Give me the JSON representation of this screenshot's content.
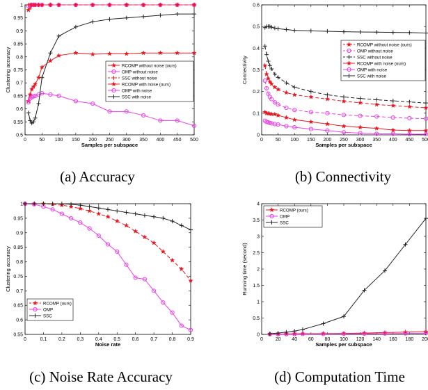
{
  "chart_data": [
    {
      "id": "a",
      "type": "line",
      "xlabel": "Samples per subspace",
      "ylabel": "Clustering accuracy",
      "xlim": [
        0,
        500
      ],
      "ylim": [
        0.5,
        1.0
      ],
      "xticks": [
        0,
        50,
        100,
        150,
        200,
        250,
        300,
        350,
        400,
        450,
        500
      ],
      "yticks": [
        0.5,
        0.55,
        0.6,
        0.65,
        0.7,
        0.75,
        0.8,
        0.85,
        0.9,
        0.95,
        1
      ],
      "grid": false,
      "legend_position": "middle-right",
      "series": [
        {
          "name": "RCOMP without noise (ours)",
          "color": "#e8171f",
          "dash": "",
          "marker": "star",
          "x": [
            10,
            15,
            20,
            25,
            30,
            40,
            50,
            75,
            100,
            150,
            200,
            250,
            300,
            350,
            400,
            450,
            500
          ],
          "y": [
            0.98,
            0.99,
            1,
            1,
            1,
            1,
            1,
            1,
            1,
            1,
            1,
            1,
            1,
            1,
            1,
            1,
            1
          ]
        },
        {
          "name": "OMP without noise",
          "color": "#ee3ee8",
          "dash": "",
          "marker": "circle",
          "x": [
            10,
            15,
            20,
            25,
            30,
            40,
            50,
            75,
            100,
            150,
            200,
            250,
            300,
            350,
            400,
            450,
            500
          ],
          "y": [
            0.995,
            0.998,
            1,
            1,
            1,
            1,
            1,
            1,
            1,
            1,
            1,
            1,
            1,
            1,
            1,
            1,
            1
          ]
        },
        {
          "name": "SSC without noise",
          "color": "#e8171f",
          "dash": "5,3",
          "marker": "plus",
          "x": [
            10,
            15,
            20,
            25,
            30,
            40,
            50,
            75,
            100,
            150,
            200,
            250,
            300,
            350,
            400,
            450,
            500
          ],
          "y": [
            1,
            1,
            1,
            1,
            1,
            1,
            1,
            1,
            1,
            1,
            1,
            1,
            1,
            1,
            1,
            1,
            1
          ]
        },
        {
          "name": "RCOMP with noise (ours)",
          "color": "#e8171f",
          "dash": "",
          "marker": "star",
          "x": [
            10,
            15,
            20,
            25,
            30,
            40,
            50,
            75,
            100,
            150,
            200,
            250,
            300,
            350,
            400,
            450,
            500
          ],
          "y": [
            0.63,
            0.655,
            0.675,
            0.685,
            0.695,
            0.72,
            0.76,
            0.785,
            0.805,
            0.815,
            0.81,
            0.812,
            0.812,
            0.815,
            0.815,
            0.815,
            0.815
          ]
        },
        {
          "name": "OMP with noise",
          "color": "#ee3ee8",
          "dash": "",
          "marker": "circle",
          "x": [
            10,
            15,
            20,
            25,
            30,
            40,
            50,
            75,
            100,
            150,
            200,
            250,
            300,
            350,
            400,
            450,
            500
          ],
          "y": [
            0.625,
            0.64,
            0.645,
            0.648,
            0.65,
            0.655,
            0.66,
            0.655,
            0.65,
            0.63,
            0.62,
            0.59,
            0.59,
            0.575,
            0.555,
            0.555,
            0.535
          ]
        },
        {
          "name": "SSC with noise",
          "color": "#222222",
          "dash": "",
          "marker": "plus",
          "x": [
            10,
            15,
            20,
            25,
            30,
            40,
            50,
            75,
            100,
            150,
            200,
            250,
            300,
            350,
            400,
            450,
            500
          ],
          "y": [
            0.585,
            0.555,
            0.545,
            0.55,
            0.565,
            0.62,
            0.72,
            0.815,
            0.88,
            0.915,
            0.935,
            0.945,
            0.95,
            0.955,
            0.96,
            0.965,
            0.965
          ]
        }
      ]
    },
    {
      "id": "b",
      "type": "line",
      "xlabel": "Samples per subspace",
      "ylabel": "Connectivity",
      "xlim": [
        0,
        500
      ],
      "ylim": [
        0,
        0.6
      ],
      "xticks": [
        0,
        50,
        100,
        150,
        200,
        250,
        300,
        350,
        400,
        450,
        500
      ],
      "yticks": [
        0,
        0.1,
        0.2,
        0.3,
        0.4,
        0.5,
        0.6
      ],
      "grid": false,
      "legend_position": "middle-right",
      "series": [
        {
          "name": "RCOMP without noise (ours)",
          "color": "#e8171f",
          "dash": "5,3",
          "marker": "star",
          "x": [
            10,
            15,
            20,
            25,
            30,
            40,
            50,
            75,
            100,
            150,
            200,
            250,
            300,
            350,
            400,
            450,
            500
          ],
          "y": [
            0.32,
            0.28,
            0.26,
            0.245,
            0.235,
            0.22,
            0.21,
            0.195,
            0.185,
            0.175,
            0.165,
            0.155,
            0.148,
            0.14,
            0.135,
            0.13,
            0.125
          ]
        },
        {
          "name": "OMP without noise",
          "color": "#ee3ee8",
          "dash": "5,3",
          "marker": "circle",
          "x": [
            10,
            15,
            20,
            25,
            30,
            40,
            50,
            75,
            100,
            150,
            200,
            250,
            300,
            350,
            400,
            450,
            500
          ],
          "y": [
            0.25,
            0.215,
            0.19,
            0.175,
            0.165,
            0.15,
            0.14,
            0.125,
            0.115,
            0.105,
            0.1,
            0.092,
            0.088,
            0.085,
            0.08,
            0.077,
            0.075
          ]
        },
        {
          "name": "SSC without noise",
          "color": "#222222",
          "dash": "5,3",
          "marker": "plus",
          "x": [
            10,
            15,
            20,
            25,
            30,
            40,
            50,
            75,
            100,
            150,
            200,
            250,
            300,
            350,
            400,
            450,
            500
          ],
          "y": [
            0.41,
            0.37,
            0.34,
            0.32,
            0.305,
            0.28,
            0.265,
            0.24,
            0.22,
            0.2,
            0.185,
            0.175,
            0.168,
            0.162,
            0.157,
            0.152,
            0.147
          ]
        },
        {
          "name": "RCOMP with noise (ours)",
          "color": "#e8171f",
          "dash": "",
          "marker": "star",
          "x": [
            10,
            15,
            20,
            25,
            30,
            40,
            50,
            75,
            100,
            150,
            200,
            250,
            300,
            350,
            400,
            450,
            500
          ],
          "y": [
            0.105,
            0.1,
            0.098,
            0.097,
            0.096,
            0.095,
            0.09,
            0.08,
            0.07,
            0.06,
            0.05,
            0.04,
            0.035,
            0.03,
            0.022,
            0.02,
            0.02
          ]
        },
        {
          "name": "OMP with noise",
          "color": "#ee3ee8",
          "dash": "",
          "marker": "circle",
          "x": [
            10,
            15,
            20,
            25,
            30,
            40,
            50,
            75,
            100,
            150,
            200,
            250,
            300,
            350,
            400,
            450,
            500
          ],
          "y": [
            0.065,
            0.06,
            0.058,
            0.055,
            0.053,
            0.05,
            0.048,
            0.04,
            0.035,
            0.027,
            0.02,
            0.012,
            0.008,
            0.005,
            0.005,
            0.003,
            0.003
          ]
        },
        {
          "name": "SSC with noise",
          "color": "#222222",
          "dash": "",
          "marker": "plus",
          "x": [
            10,
            15,
            20,
            25,
            30,
            40,
            50,
            75,
            100,
            150,
            200,
            250,
            300,
            350,
            400,
            450,
            500
          ],
          "y": [
            0.495,
            0.5,
            0.5,
            0.5,
            0.497,
            0.493,
            0.49,
            0.486,
            0.482,
            0.48,
            0.478,
            0.476,
            0.475,
            0.474,
            0.473,
            0.472,
            0.47
          ]
        }
      ]
    },
    {
      "id": "c",
      "type": "line",
      "xlabel": "Noise rate",
      "ylabel": "Clustering accuracy",
      "xlim": [
        0,
        0.9
      ],
      "ylim": [
        0.55,
        1.0
      ],
      "xticks": [
        0,
        0.1,
        0.2,
        0.3,
        0.4,
        0.5,
        0.6,
        0.7,
        0.8,
        0.9
      ],
      "yticks": [
        0.55,
        0.6,
        0.65,
        0.7,
        0.75,
        0.8,
        0.85,
        0.9,
        0.95,
        1
      ],
      "grid": false,
      "legend_position": "bottom-left",
      "series": [
        {
          "name": "RCOMP (ours)",
          "color": "#e8171f",
          "dash": "5,3",
          "marker": "star",
          "x": [
            0,
            0.05,
            0.1,
            0.15,
            0.2,
            0.25,
            0.3,
            0.35,
            0.4,
            0.45,
            0.5,
            0.55,
            0.6,
            0.65,
            0.7,
            0.75,
            0.8,
            0.85,
            0.9
          ],
          "y": [
            1,
            1,
            1,
            0.998,
            0.995,
            0.99,
            0.983,
            0.975,
            0.965,
            0.955,
            0.94,
            0.925,
            0.905,
            0.885,
            0.865,
            0.835,
            0.805,
            0.775,
            0.735
          ]
        },
        {
          "name": "OMP",
          "color": "#ee3ee8",
          "dash": "",
          "marker": "circle",
          "x": [
            0,
            0.05,
            0.1,
            0.15,
            0.2,
            0.25,
            0.3,
            0.35,
            0.4,
            0.45,
            0.5,
            0.55,
            0.6,
            0.65,
            0.7,
            0.75,
            0.8,
            0.85,
            0.9
          ],
          "y": [
            1,
            0.998,
            0.99,
            0.98,
            0.965,
            0.95,
            0.935,
            0.915,
            0.89,
            0.86,
            0.835,
            0.79,
            0.745,
            0.74,
            0.7,
            0.66,
            0.625,
            0.58,
            0.565
          ]
        },
        {
          "name": "SSC",
          "color": "#222222",
          "dash": "",
          "marker": "plus",
          "x": [
            0,
            0.05,
            0.1,
            0.15,
            0.2,
            0.25,
            0.3,
            0.35,
            0.4,
            0.45,
            0.5,
            0.55,
            0.6,
            0.65,
            0.7,
            0.75,
            0.8,
            0.85,
            0.9
          ],
          "y": [
            1,
            1,
            1,
            1,
            1,
            0.998,
            0.995,
            0.99,
            0.985,
            0.98,
            0.975,
            0.97,
            0.965,
            0.96,
            0.955,
            0.95,
            0.94,
            0.925,
            0.91
          ]
        }
      ]
    },
    {
      "id": "d",
      "type": "line",
      "xlabel": "Samples per subspace",
      "ylabel": "Running time (second)",
      "xlim": [
        0,
        200
      ],
      "ylim": [
        0,
        4
      ],
      "xticks": [
        0,
        20,
        40,
        60,
        80,
        100,
        120,
        140,
        160,
        180,
        200
      ],
      "yticks": [
        0,
        0.5,
        1,
        1.5,
        2,
        2.5,
        3,
        3.5,
        4
      ],
      "grid": false,
      "legend_position": "top-left",
      "series": [
        {
          "name": "RCOMP (ours)",
          "color": "#e8171f",
          "dash": "",
          "marker": "star",
          "x": [
            10,
            20,
            30,
            40,
            50,
            75,
            100,
            125,
            150,
            175,
            200
          ],
          "y": [
            0.01,
            0.012,
            0.015,
            0.018,
            0.02,
            0.025,
            0.03,
            0.04,
            0.055,
            0.07,
            0.085
          ]
        },
        {
          "name": "OMP",
          "color": "#ee3ee8",
          "dash": "",
          "marker": "circle",
          "x": [
            10,
            20,
            30,
            40,
            50,
            75,
            100,
            125,
            150,
            175,
            200
          ],
          "y": [
            0.005,
            0.007,
            0.008,
            0.01,
            0.012,
            0.015,
            0.018,
            0.022,
            0.025,
            0.03,
            0.035
          ]
        },
        {
          "name": "SSC",
          "color": "#222222",
          "dash": "",
          "marker": "plus",
          "x": [
            10,
            20,
            30,
            40,
            50,
            75,
            100,
            125,
            150,
            175,
            200
          ],
          "y": [
            0.02,
            0.04,
            0.07,
            0.1,
            0.15,
            0.33,
            0.55,
            1.35,
            1.95,
            2.75,
            3.55
          ]
        }
      ]
    }
  ],
  "captions": {
    "a": "(a) Accuracy",
    "b": "(b) Connectivity",
    "c": "(c) Noise Rate Accuracy",
    "d": "(d) Computation Time"
  }
}
